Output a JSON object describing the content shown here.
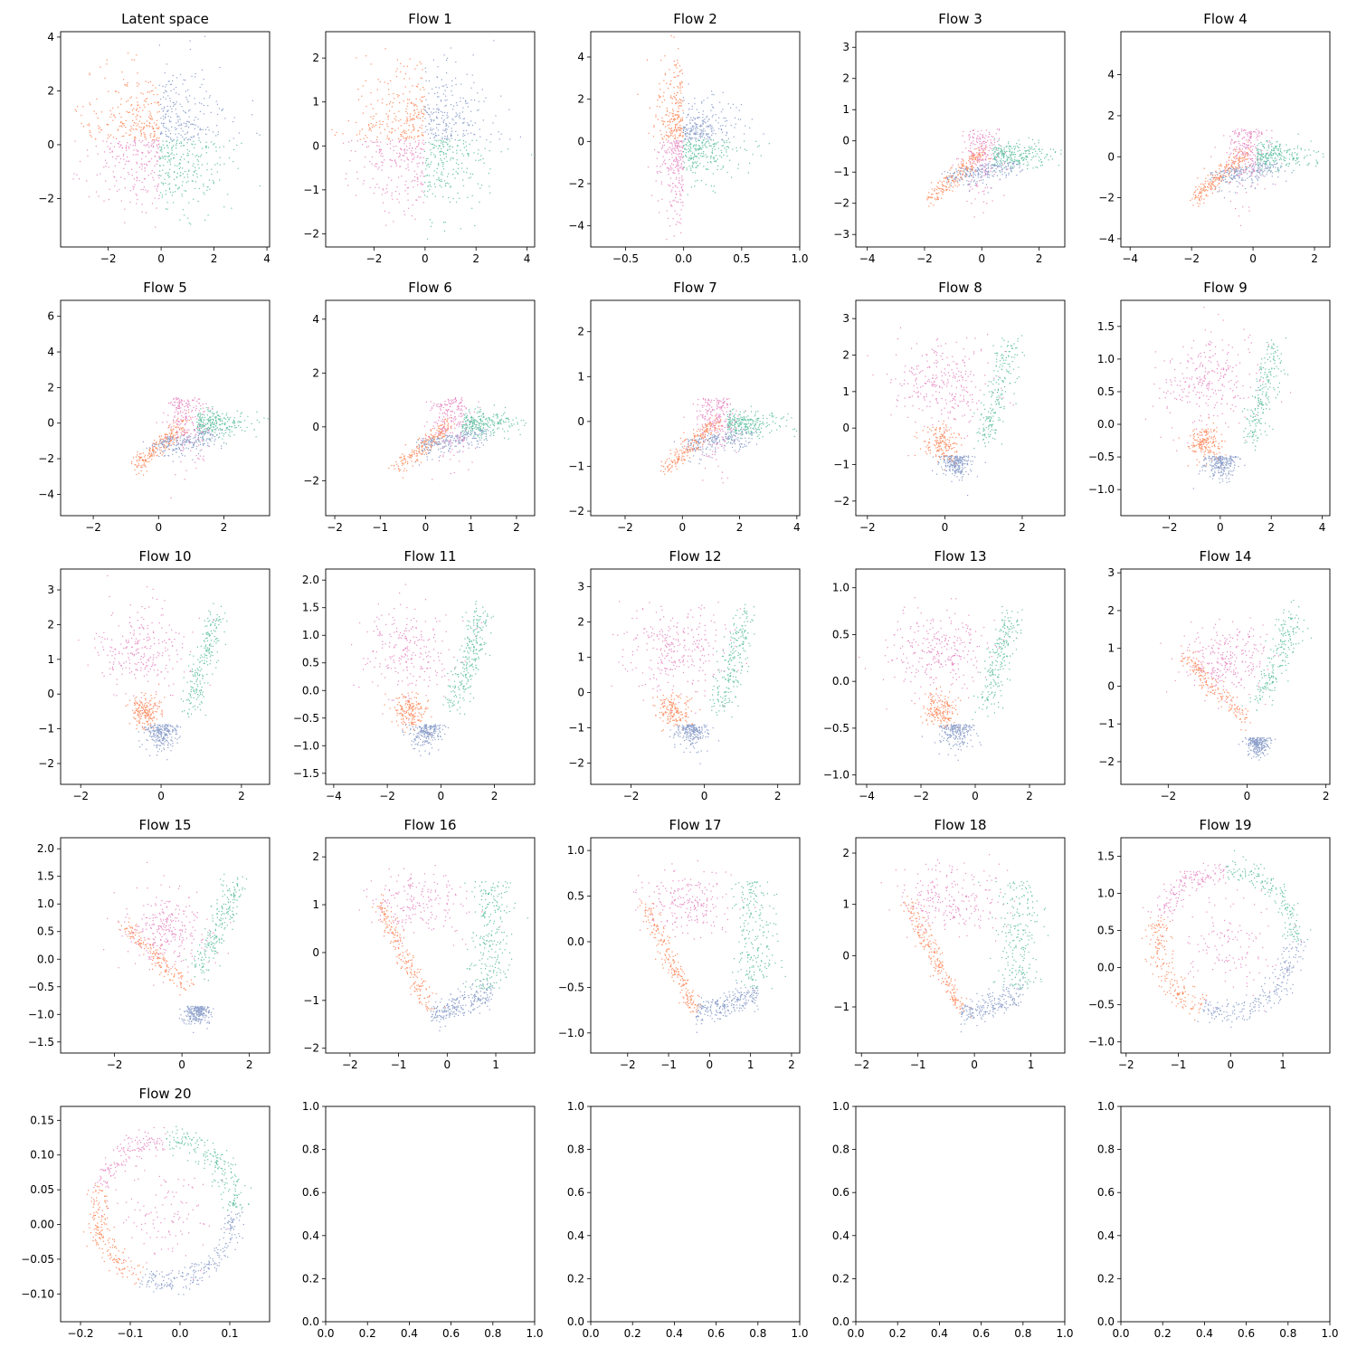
{
  "colors": {
    "orange": "#fc8d62",
    "green": "#66c2a5",
    "blue": "#8da0cb",
    "pink": "#e78ac3"
  },
  "chart_data": [
    {
      "type": "scatter",
      "title": "Latent space",
      "xticks": [
        -2,
        0,
        2,
        4
      ],
      "yticks": [
        -2,
        0,
        2,
        4
      ],
      "xlim": [
        -3.8,
        4.1
      ],
      "ylim": [
        -3.8,
        4.2
      ],
      "shape": "latent"
    },
    {
      "type": "scatter",
      "title": "Flow 1",
      "xticks": [
        -2,
        0,
        2,
        4
      ],
      "yticks": [
        -2,
        -1,
        0,
        1,
        2
      ],
      "xlim": [
        -3.9,
        4.3
      ],
      "ylim": [
        -2.3,
        2.6
      ],
      "shape": "latent"
    },
    {
      "type": "scatter",
      "title": "Flow 2",
      "xticks": [
        -0.5,
        0.0,
        0.5,
        1.0
      ],
      "yticks": [
        -4,
        -2,
        0,
        2,
        4
      ],
      "xlim": [
        -0.8,
        1.0
      ],
      "ylim": [
        -5.0,
        5.2
      ],
      "shape": "flow2"
    },
    {
      "type": "scatter",
      "title": "Flow 3",
      "xticks": [
        -4,
        -2,
        0,
        2
      ],
      "yticks": [
        -3,
        -2,
        -1,
        0,
        1,
        2,
        3
      ],
      "xlim": [
        -4.4,
        2.9
      ],
      "ylim": [
        -3.4,
        3.5
      ],
      "shape": "fan"
    },
    {
      "type": "scatter",
      "title": "Flow 4",
      "xticks": [
        -4,
        -2,
        0,
        2
      ],
      "yticks": [
        -4,
        -2,
        0,
        2,
        4
      ],
      "xlim": [
        -4.3,
        2.5
      ],
      "ylim": [
        -4.4,
        6.1
      ],
      "shape": "fan"
    },
    {
      "type": "scatter",
      "title": "Flow 5",
      "xticks": [
        -2,
        0,
        2
      ],
      "yticks": [
        -4,
        -2,
        0,
        2,
        4,
        6
      ],
      "xlim": [
        -3.0,
        3.4
      ],
      "ylim": [
        -5.2,
        6.9
      ],
      "shape": "fan"
    },
    {
      "type": "scatter",
      "title": "Flow 6",
      "xticks": [
        -2,
        -1,
        0,
        1,
        2
      ],
      "yticks": [
        -2,
        0,
        2,
        4
      ],
      "xlim": [
        -2.2,
        2.4
      ],
      "ylim": [
        -3.3,
        4.7
      ],
      "shape": "fan"
    },
    {
      "type": "scatter",
      "title": "Flow 7",
      "xticks": [
        -2,
        0,
        2,
        4
      ],
      "yticks": [
        -2,
        -1,
        0,
        1,
        2
      ],
      "xlim": [
        -3.2,
        4.1
      ],
      "ylim": [
        -2.1,
        2.7
      ],
      "shape": "fan"
    },
    {
      "type": "scatter",
      "title": "Flow 8",
      "xticks": [
        -2,
        0,
        2
      ],
      "yticks": [
        -2,
        -1,
        0,
        1,
        2,
        3
      ],
      "xlim": [
        -2.3,
        3.1
      ],
      "ylim": [
        -2.4,
        3.5
      ],
      "shape": "kite"
    },
    {
      "type": "scatter",
      "title": "Flow 9",
      "xticks": [
        -2,
        0,
        2,
        4
      ],
      "yticks": [
        -1.0,
        -0.5,
        0.0,
        0.5,
        1.0,
        1.5
      ],
      "xlim": [
        -3.9,
        4.3
      ],
      "ylim": [
        -1.4,
        1.9
      ],
      "shape": "kite"
    },
    {
      "type": "scatter",
      "title": "Flow 10",
      "xticks": [
        -2,
        0,
        2
      ],
      "yticks": [
        -2,
        -1,
        0,
        1,
        2,
        3
      ],
      "xlim": [
        -2.5,
        2.7
      ],
      "ylim": [
        -2.6,
        3.6
      ],
      "shape": "kite"
    },
    {
      "type": "scatter",
      "title": "Flow 11",
      "xticks": [
        -4,
        -2,
        0,
        2
      ],
      "yticks": [
        -1.5,
        -1.0,
        -0.5,
        0.0,
        0.5,
        1.0,
        1.5,
        2.0
      ],
      "xlim": [
        -4.3,
        3.5
      ],
      "ylim": [
        -1.7,
        2.2
      ],
      "shape": "kite"
    },
    {
      "type": "scatter",
      "title": "Flow 12",
      "xticks": [
        -2,
        0,
        2
      ],
      "yticks": [
        -2,
        -1,
        0,
        1,
        2,
        3
      ],
      "xlim": [
        -3.1,
        2.6
      ],
      "ylim": [
        -2.6,
        3.5
      ],
      "shape": "kite2"
    },
    {
      "type": "scatter",
      "title": "Flow 13",
      "xticks": [
        -4,
        -2,
        0,
        2
      ],
      "yticks": [
        -1.0,
        -0.5,
        0.0,
        0.5,
        1.0
      ],
      "xlim": [
        -4.4,
        3.3
      ],
      "ylim": [
        -1.1,
        1.2
      ],
      "shape": "kite2"
    },
    {
      "type": "scatter",
      "title": "Flow 14",
      "xticks": [
        -2,
        0,
        2
      ],
      "yticks": [
        -2,
        -1,
        0,
        1,
        2,
        3
      ],
      "xlim": [
        -3.2,
        2.1
      ],
      "ylim": [
        -2.6,
        3.1
      ],
      "shape": "tri"
    },
    {
      "type": "scatter",
      "title": "Flow 15",
      "xticks": [
        -2,
        0,
        2
      ],
      "yticks": [
        -1.5,
        -1.0,
        -0.5,
        0.0,
        0.5,
        1.0,
        1.5,
        2.0
      ],
      "xlim": [
        -3.6,
        2.6
      ],
      "ylim": [
        -1.7,
        2.2
      ],
      "shape": "tri"
    },
    {
      "type": "scatter",
      "title": "Flow 16",
      "xticks": [
        -2,
        -1,
        0,
        1
      ],
      "yticks": [
        -2,
        -1,
        0,
        1,
        2
      ],
      "xlim": [
        -2.5,
        1.8
      ],
      "ylim": [
        -2.1,
        2.4
      ],
      "shape": "bowl"
    },
    {
      "type": "scatter",
      "title": "Flow 17",
      "xticks": [
        -2,
        -1,
        0,
        1,
        2
      ],
      "yticks": [
        -1.0,
        -0.5,
        0.0,
        0.5,
        1.0
      ],
      "xlim": [
        -2.9,
        2.2
      ],
      "ylim": [
        -1.22,
        1.14
      ],
      "shape": "bowl"
    },
    {
      "type": "scatter",
      "title": "Flow 18",
      "xticks": [
        -2,
        -1,
        0,
        1
      ],
      "yticks": [
        -1,
        0,
        1,
        2
      ],
      "xlim": [
        -2.1,
        1.6
      ],
      "ylim": [
        -1.9,
        2.3
      ],
      "shape": "bowl"
    },
    {
      "type": "scatter",
      "title": "Flow 19",
      "xticks": [
        -2,
        -1,
        0,
        1
      ],
      "yticks": [
        -1.0,
        -0.5,
        0.0,
        0.5,
        1.0,
        1.5
      ],
      "xlim": [
        -2.1,
        1.9
      ],
      "ylim": [
        -1.15,
        1.75
      ],
      "shape": "ring"
    },
    {
      "type": "scatter",
      "title": "Flow 20",
      "xticks": [
        -0.2,
        -0.1,
        0.0,
        0.1
      ],
      "yticks": [
        -0.1,
        -0.05,
        0.0,
        0.05,
        0.1,
        0.15
      ],
      "xlim": [
        -0.24,
        0.18
      ],
      "ylim": [
        -0.14,
        0.17
      ],
      "shape": "ring"
    },
    {
      "type": "scatter",
      "title": "",
      "xticks": [
        0.0,
        0.2,
        0.4,
        0.6,
        0.8,
        1.0
      ],
      "yticks": [
        0.0,
        0.2,
        0.4,
        0.6,
        0.8,
        1.0
      ],
      "xlim": [
        0,
        1
      ],
      "ylim": [
        0,
        1
      ],
      "shape": "empty"
    },
    {
      "type": "scatter",
      "title": "",
      "xticks": [
        0.0,
        0.2,
        0.4,
        0.6,
        0.8,
        1.0
      ],
      "yticks": [
        0.0,
        0.2,
        0.4,
        0.6,
        0.8,
        1.0
      ],
      "xlim": [
        0,
        1
      ],
      "ylim": [
        0,
        1
      ],
      "shape": "empty"
    },
    {
      "type": "scatter",
      "title": "",
      "xticks": [
        0.0,
        0.2,
        0.4,
        0.6,
        0.8,
        1.0
      ],
      "yticks": [
        0.0,
        0.2,
        0.4,
        0.6,
        0.8,
        1.0
      ],
      "xlim": [
        0,
        1
      ],
      "ylim": [
        0,
        1
      ],
      "shape": "empty"
    },
    {
      "type": "scatter",
      "title": "",
      "xticks": [
        0.0,
        0.2,
        0.4,
        0.6,
        0.8,
        1.0
      ],
      "yticks": [
        0.0,
        0.2,
        0.4,
        0.6,
        0.8,
        1.0
      ],
      "xlim": [
        0,
        1
      ],
      "ylim": [
        0,
        1
      ],
      "shape": "empty"
    }
  ]
}
